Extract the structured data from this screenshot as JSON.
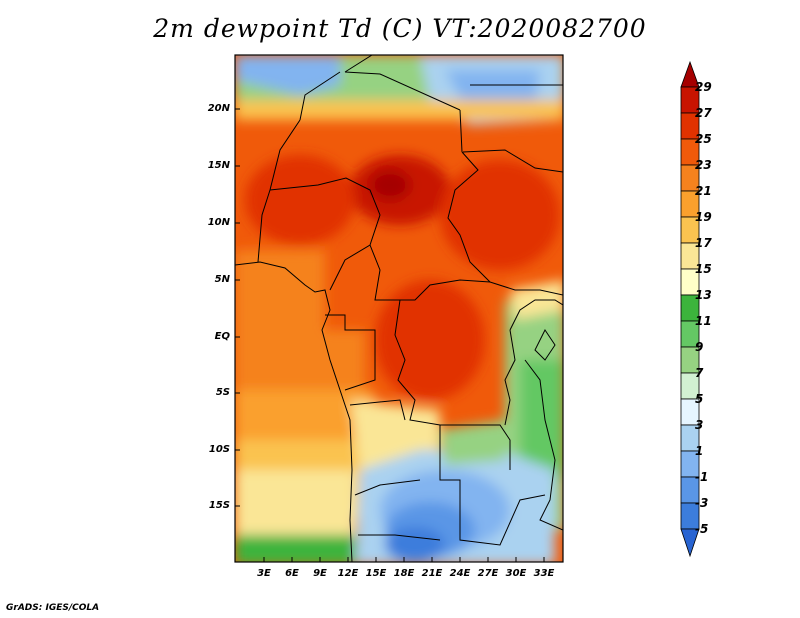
{
  "title": "2m dewpoint Td (C) VT:2020082700",
  "credit": "GrADS: IGES/COLA",
  "map": {
    "lat_labels": [
      "20N",
      "15N",
      "10N",
      "5N",
      "EQ",
      "5S",
      "10S",
      "15S"
    ],
    "lon_labels": [
      "3E",
      "6E",
      "9E",
      "12E",
      "15E",
      "18E",
      "21E",
      "24E",
      "27E",
      "30E",
      "33E"
    ]
  },
  "colorbar": {
    "labels": [
      "29",
      "27",
      "25",
      "23",
      "21",
      "19",
      "17",
      "15",
      "13",
      "11",
      "9",
      "7",
      "5",
      "3",
      "1",
      "-1",
      "-3",
      "-5"
    ],
    "colors": [
      "#a50000",
      "#c81400",
      "#e13200",
      "#f05a0a",
      "#f5821e",
      "#faa02d",
      "#fac350",
      "#fae696",
      "#3cb43c",
      "#64c864",
      "#96d282",
      "#d2f0d2",
      "#aad2f0",
      "#82b4f0",
      "#5a96e6",
      "#3c7ddc",
      "#2864d2"
    ]
  }
}
